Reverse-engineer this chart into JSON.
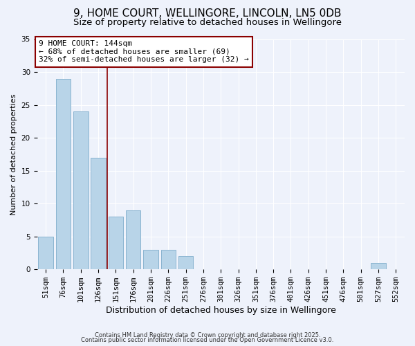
{
  "title": "9, HOME COURT, WELLINGORE, LINCOLN, LN5 0DB",
  "subtitle": "Size of property relative to detached houses in Wellingore",
  "xlabel": "Distribution of detached houses by size in Wellingore",
  "ylabel": "Number of detached properties",
  "bar_labels": [
    "51sqm",
    "76sqm",
    "101sqm",
    "126sqm",
    "151sqm",
    "176sqm",
    "201sqm",
    "226sqm",
    "251sqm",
    "276sqm",
    "301sqm",
    "326sqm",
    "351sqm",
    "376sqm",
    "401sqm",
    "426sqm",
    "451sqm",
    "476sqm",
    "501sqm",
    "527sqm",
    "552sqm"
  ],
  "bar_values": [
    5,
    29,
    24,
    17,
    8,
    9,
    3,
    3,
    2,
    0,
    0,
    0,
    0,
    0,
    0,
    0,
    0,
    0,
    0,
    1,
    0
  ],
  "bar_color": "#b8d4e8",
  "bar_edge_color": "#8ab4d0",
  "vline_color": "#8b0000",
  "vline_x_index": 3.5,
  "annotation_line1": "9 HOME COURT: 144sqm",
  "annotation_line2": "← 68% of detached houses are smaller (69)",
  "annotation_line3": "32% of semi-detached houses are larger (32) →",
  "annotation_box_color": "#ffffff",
  "annotation_box_edge": "#8b0000",
  "ylim": [
    0,
    35
  ],
  "yticks": [
    0,
    5,
    10,
    15,
    20,
    25,
    30,
    35
  ],
  "bg_color": "#eef2fb",
  "plot_bg_color": "#eef2fb",
  "footer1": "Contains HM Land Registry data © Crown copyright and database right 2025.",
  "footer2": "Contains public sector information licensed under the Open Government Licence v3.0.",
  "title_fontsize": 11,
  "subtitle_fontsize": 9.5,
  "xlabel_fontsize": 9,
  "ylabel_fontsize": 8,
  "tick_fontsize": 7.5,
  "annotation_fontsize": 8,
  "footer_fontsize": 6
}
